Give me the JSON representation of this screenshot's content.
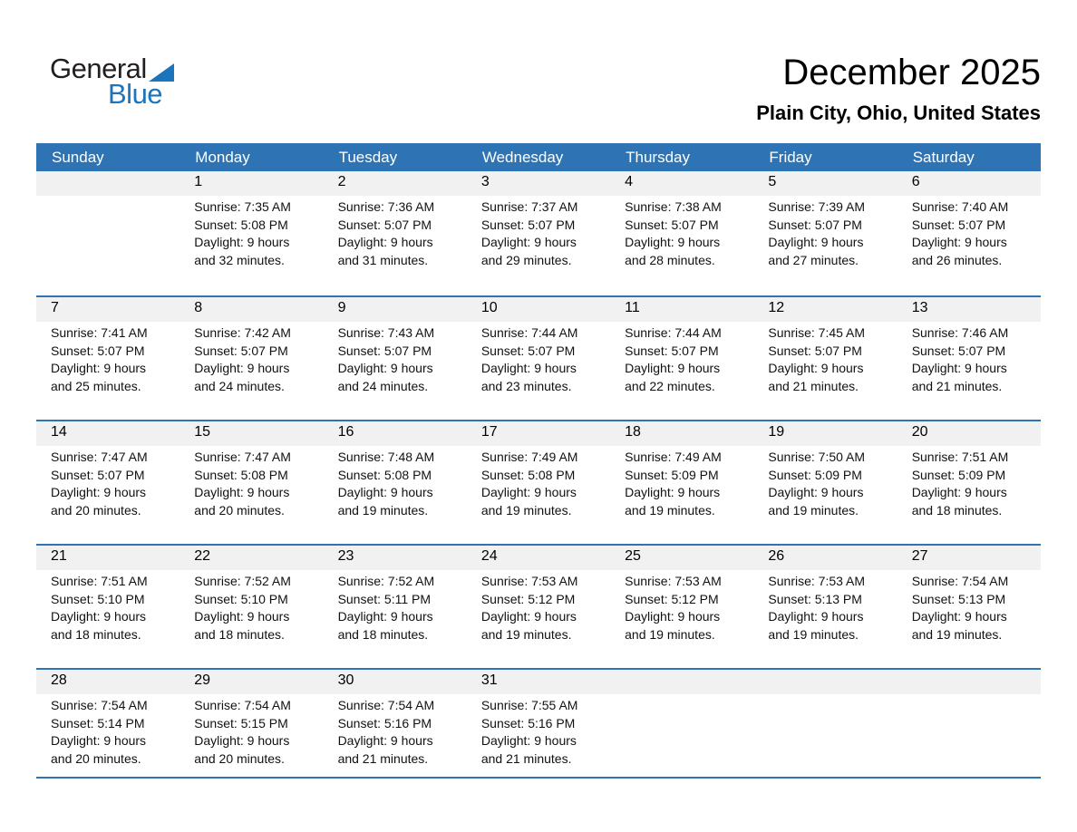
{
  "logo": {
    "text_dark": "General",
    "text_blue": "Blue"
  },
  "title": "December 2025",
  "subtitle": "Plain City, Ohio, United States",
  "colors": {
    "header_blue": "#2E74B5",
    "band_gray": "#F1F1F1",
    "logo_blue": "#1C75BC",
    "logo_dark": "#231F20",
    "text": "#111111"
  },
  "weekdays": [
    "Sunday",
    "Monday",
    "Tuesday",
    "Wednesday",
    "Thursday",
    "Friday",
    "Saturday"
  ],
  "weeks": [
    [
      null,
      {
        "day": "1",
        "lines": [
          "Sunrise: 7:35 AM",
          "Sunset: 5:08 PM",
          "Daylight: 9 hours",
          "and 32 minutes."
        ]
      },
      {
        "day": "2",
        "lines": [
          "Sunrise: 7:36 AM",
          "Sunset: 5:07 PM",
          "Daylight: 9 hours",
          "and 31 minutes."
        ]
      },
      {
        "day": "3",
        "lines": [
          "Sunrise: 7:37 AM",
          "Sunset: 5:07 PM",
          "Daylight: 9 hours",
          "and 29 minutes."
        ]
      },
      {
        "day": "4",
        "lines": [
          "Sunrise: 7:38 AM",
          "Sunset: 5:07 PM",
          "Daylight: 9 hours",
          "and 28 minutes."
        ]
      },
      {
        "day": "5",
        "lines": [
          "Sunrise: 7:39 AM",
          "Sunset: 5:07 PM",
          "Daylight: 9 hours",
          "and 27 minutes."
        ]
      },
      {
        "day": "6",
        "lines": [
          "Sunrise: 7:40 AM",
          "Sunset: 5:07 PM",
          "Daylight: 9 hours",
          "and 26 minutes."
        ]
      }
    ],
    [
      {
        "day": "7",
        "lines": [
          "Sunrise: 7:41 AM",
          "Sunset: 5:07 PM",
          "Daylight: 9 hours",
          "and 25 minutes."
        ]
      },
      {
        "day": "8",
        "lines": [
          "Sunrise: 7:42 AM",
          "Sunset: 5:07 PM",
          "Daylight: 9 hours",
          "and 24 minutes."
        ]
      },
      {
        "day": "9",
        "lines": [
          "Sunrise: 7:43 AM",
          "Sunset: 5:07 PM",
          "Daylight: 9 hours",
          "and 24 minutes."
        ]
      },
      {
        "day": "10",
        "lines": [
          "Sunrise: 7:44 AM",
          "Sunset: 5:07 PM",
          "Daylight: 9 hours",
          "and 23 minutes."
        ]
      },
      {
        "day": "11",
        "lines": [
          "Sunrise: 7:44 AM",
          "Sunset: 5:07 PM",
          "Daylight: 9 hours",
          "and 22 minutes."
        ]
      },
      {
        "day": "12",
        "lines": [
          "Sunrise: 7:45 AM",
          "Sunset: 5:07 PM",
          "Daylight: 9 hours",
          "and 21 minutes."
        ]
      },
      {
        "day": "13",
        "lines": [
          "Sunrise: 7:46 AM",
          "Sunset: 5:07 PM",
          "Daylight: 9 hours",
          "and 21 minutes."
        ]
      }
    ],
    [
      {
        "day": "14",
        "lines": [
          "Sunrise: 7:47 AM",
          "Sunset: 5:07 PM",
          "Daylight: 9 hours",
          "and 20 minutes."
        ]
      },
      {
        "day": "15",
        "lines": [
          "Sunrise: 7:47 AM",
          "Sunset: 5:08 PM",
          "Daylight: 9 hours",
          "and 20 minutes."
        ]
      },
      {
        "day": "16",
        "lines": [
          "Sunrise: 7:48 AM",
          "Sunset: 5:08 PM",
          "Daylight: 9 hours",
          "and 19 minutes."
        ]
      },
      {
        "day": "17",
        "lines": [
          "Sunrise: 7:49 AM",
          "Sunset: 5:08 PM",
          "Daylight: 9 hours",
          "and 19 minutes."
        ]
      },
      {
        "day": "18",
        "lines": [
          "Sunrise: 7:49 AM",
          "Sunset: 5:09 PM",
          "Daylight: 9 hours",
          "and 19 minutes."
        ]
      },
      {
        "day": "19",
        "lines": [
          "Sunrise: 7:50 AM",
          "Sunset: 5:09 PM",
          "Daylight: 9 hours",
          "and 19 minutes."
        ]
      },
      {
        "day": "20",
        "lines": [
          "Sunrise: 7:51 AM",
          "Sunset: 5:09 PM",
          "Daylight: 9 hours",
          "and 18 minutes."
        ]
      }
    ],
    [
      {
        "day": "21",
        "lines": [
          "Sunrise: 7:51 AM",
          "Sunset: 5:10 PM",
          "Daylight: 9 hours",
          "and 18 minutes."
        ]
      },
      {
        "day": "22",
        "lines": [
          "Sunrise: 7:52 AM",
          "Sunset: 5:10 PM",
          "Daylight: 9 hours",
          "and 18 minutes."
        ]
      },
      {
        "day": "23",
        "lines": [
          "Sunrise: 7:52 AM",
          "Sunset: 5:11 PM",
          "Daylight: 9 hours",
          "and 18 minutes."
        ]
      },
      {
        "day": "24",
        "lines": [
          "Sunrise: 7:53 AM",
          "Sunset: 5:12 PM",
          "Daylight: 9 hours",
          "and 19 minutes."
        ]
      },
      {
        "day": "25",
        "lines": [
          "Sunrise: 7:53 AM",
          "Sunset: 5:12 PM",
          "Daylight: 9 hours",
          "and 19 minutes."
        ]
      },
      {
        "day": "26",
        "lines": [
          "Sunrise: 7:53 AM",
          "Sunset: 5:13 PM",
          "Daylight: 9 hours",
          "and 19 minutes."
        ]
      },
      {
        "day": "27",
        "lines": [
          "Sunrise: 7:54 AM",
          "Sunset: 5:13 PM",
          "Daylight: 9 hours",
          "and 19 minutes."
        ]
      }
    ],
    [
      {
        "day": "28",
        "lines": [
          "Sunrise: 7:54 AM",
          "Sunset: 5:14 PM",
          "Daylight: 9 hours",
          "and 20 minutes."
        ]
      },
      {
        "day": "29",
        "lines": [
          "Sunrise: 7:54 AM",
          "Sunset: 5:15 PM",
          "Daylight: 9 hours",
          "and 20 minutes."
        ]
      },
      {
        "day": "30",
        "lines": [
          "Sunrise: 7:54 AM",
          "Sunset: 5:16 PM",
          "Daylight: 9 hours",
          "and 21 minutes."
        ]
      },
      {
        "day": "31",
        "lines": [
          "Sunrise: 7:55 AM",
          "Sunset: 5:16 PM",
          "Daylight: 9 hours",
          "and 21 minutes."
        ]
      },
      null,
      null,
      null
    ]
  ]
}
